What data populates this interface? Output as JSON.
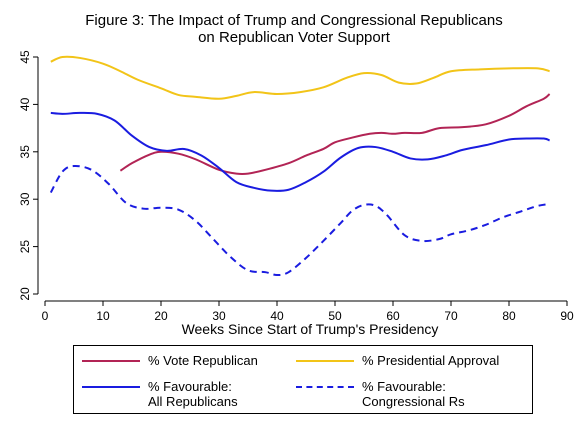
{
  "chart_data": {
    "type": "line",
    "title": [
      "Figure 3: The Impact of Trump and Congressional Republicans",
      "on Republican Voter Support"
    ],
    "xlabel": "Weeks Since Start of Trump's Presidency",
    "ylabel": "",
    "xlim": [
      0,
      90
    ],
    "ylim": [
      20,
      45
    ],
    "xticks": [
      0,
      10,
      20,
      30,
      40,
      50,
      60,
      70,
      80,
      90
    ],
    "yticks": [
      20,
      25,
      30,
      35,
      40,
      45
    ],
    "grid": false,
    "legend_position": "bottom",
    "series": [
      {
        "name": "% Vote Republican",
        "color": "#b22455",
        "style": "solid",
        "points": [
          [
            13,
            33.0
          ],
          [
            15,
            33.8
          ],
          [
            18,
            34.7
          ],
          [
            20,
            35.0
          ],
          [
            23,
            34.8
          ],
          [
            26,
            34.2
          ],
          [
            30,
            33.1
          ],
          [
            33,
            32.7
          ],
          [
            35,
            32.7
          ],
          [
            38,
            33.1
          ],
          [
            42,
            33.8
          ],
          [
            45,
            34.6
          ],
          [
            48,
            35.3
          ],
          [
            50,
            36.0
          ],
          [
            53,
            36.5
          ],
          [
            56,
            36.9
          ],
          [
            58,
            37.0
          ],
          [
            60,
            36.9
          ],
          [
            62,
            37.0
          ],
          [
            65,
            37.0
          ],
          [
            68,
            37.5
          ],
          [
            72,
            37.6
          ],
          [
            76,
            37.9
          ],
          [
            80,
            38.8
          ],
          [
            83,
            39.8
          ],
          [
            86,
            40.6
          ],
          [
            87,
            41.1
          ]
        ]
      },
      {
        "name": "% Presidential Approval",
        "color": "#f2c418",
        "style": "solid",
        "points": [
          [
            1,
            44.5
          ],
          [
            3,
            45.0
          ],
          [
            6,
            44.9
          ],
          [
            10,
            44.3
          ],
          [
            13,
            43.5
          ],
          [
            16,
            42.6
          ],
          [
            20,
            41.7
          ],
          [
            23,
            41.0
          ],
          [
            26,
            40.8
          ],
          [
            30,
            40.6
          ],
          [
            33,
            40.9
          ],
          [
            36,
            41.3
          ],
          [
            40,
            41.1
          ],
          [
            44,
            41.3
          ],
          [
            48,
            41.8
          ],
          [
            52,
            42.8
          ],
          [
            55,
            43.3
          ],
          [
            58,
            43.1
          ],
          [
            61,
            42.3
          ],
          [
            64,
            42.2
          ],
          [
            67,
            42.8
          ],
          [
            70,
            43.5
          ],
          [
            75,
            43.7
          ],
          [
            80,
            43.8
          ],
          [
            85,
            43.8
          ],
          [
            87,
            43.5
          ]
        ]
      },
      {
        "name": "% Favourable: All Republicans",
        "color": "#1a1ce0",
        "style": "solid",
        "points": [
          [
            1,
            39.1
          ],
          [
            3,
            39.0
          ],
          [
            6,
            39.1
          ],
          [
            9,
            39.0
          ],
          [
            12,
            38.3
          ],
          [
            15,
            36.7
          ],
          [
            18,
            35.5
          ],
          [
            21,
            35.1
          ],
          [
            24,
            35.3
          ],
          [
            27,
            34.6
          ],
          [
            30,
            33.3
          ],
          [
            33,
            31.8
          ],
          [
            36,
            31.2
          ],
          [
            39,
            30.9
          ],
          [
            42,
            31.0
          ],
          [
            45,
            31.8
          ],
          [
            48,
            32.9
          ],
          [
            51,
            34.4
          ],
          [
            54,
            35.4
          ],
          [
            57,
            35.5
          ],
          [
            60,
            35.0
          ],
          [
            63,
            34.3
          ],
          [
            66,
            34.2
          ],
          [
            69,
            34.6
          ],
          [
            72,
            35.2
          ],
          [
            76,
            35.7
          ],
          [
            80,
            36.3
          ],
          [
            83,
            36.4
          ],
          [
            86,
            36.4
          ],
          [
            87,
            36.2
          ]
        ]
      },
      {
        "name": "% Favourable: Congressional Rs",
        "color": "#1a1ce0",
        "style": "dashed",
        "points": [
          [
            1,
            30.7
          ],
          [
            3,
            32.9
          ],
          [
            5,
            33.5
          ],
          [
            8,
            33.1
          ],
          [
            11,
            31.6
          ],
          [
            14,
            29.6
          ],
          [
            17,
            29.0
          ],
          [
            20,
            29.1
          ],
          [
            23,
            28.9
          ],
          [
            26,
            27.7
          ],
          [
            29,
            25.8
          ],
          [
            32,
            23.9
          ],
          [
            35,
            22.5
          ],
          [
            38,
            22.3
          ],
          [
            40,
            22.0
          ],
          [
            42,
            22.3
          ],
          [
            45,
            23.8
          ],
          [
            48,
            25.6
          ],
          [
            51,
            27.5
          ],
          [
            53,
            28.8
          ],
          [
            55,
            29.4
          ],
          [
            57,
            29.3
          ],
          [
            59,
            28.3
          ],
          [
            62,
            26.2
          ],
          [
            65,
            25.6
          ],
          [
            68,
            25.8
          ],
          [
            70,
            26.3
          ],
          [
            73,
            26.7
          ],
          [
            76,
            27.3
          ],
          [
            79,
            28.1
          ],
          [
            82,
            28.7
          ],
          [
            85,
            29.3
          ],
          [
            87,
            29.5
          ]
        ]
      }
    ]
  },
  "legend": [
    {
      "lines": [
        "% Vote Republican"
      ],
      "color": "#b22455",
      "style": "solid"
    },
    {
      "lines": [
        "% Presidential Approval"
      ],
      "color": "#f2c418",
      "style": "solid"
    },
    {
      "lines": [
        "% Favourable:",
        "All Republicans"
      ],
      "color": "#1a1ce0",
      "style": "solid"
    },
    {
      "lines": [
        "% Favourable:",
        "Congressional Rs"
      ],
      "color": "#1a1ce0",
      "style": "dashed"
    }
  ]
}
